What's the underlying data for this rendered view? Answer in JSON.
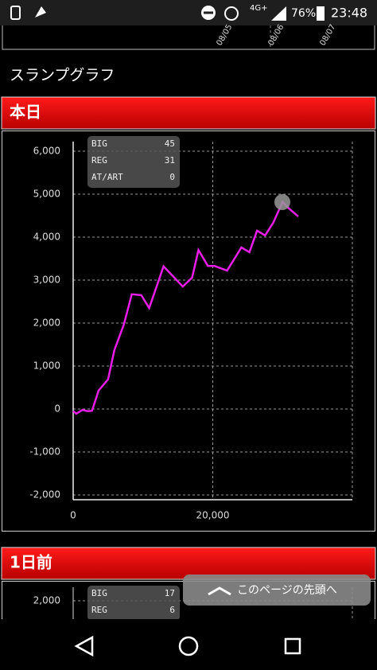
{
  "status_bar": {
    "network": "4G+",
    "battery": "76%",
    "time": "23:48"
  },
  "previous_chart": {
    "x_labels": [
      "08/05",
      "08/06",
      "08/07"
    ]
  },
  "section_title": "スランプグラフ",
  "chart_data": [
    {
      "type": "line",
      "title": "本日",
      "x": [
        0,
        450,
        1350,
        2050,
        2700,
        3650,
        5000,
        5900,
        7250,
        8400,
        9750,
        10900,
        12950,
        15700,
        17050,
        17950,
        19300,
        20250,
        22050,
        24100,
        25250,
        26350,
        27500,
        28650,
        30000,
        30900,
        32250
      ],
      "series": [
        {
          "color": "#e81ee8",
          "values": [
            -50,
            -110,
            -20,
            -50,
            -40,
            430,
            690,
            1370,
            1960,
            2670,
            2650,
            2350,
            3320,
            2850,
            3060,
            3700,
            3330,
            3330,
            3220,
            3760,
            3650,
            4150,
            4040,
            4330,
            4820,
            4670,
            4480
          ]
        }
      ],
      "xlim": [
        0,
        40000
      ],
      "ylim": [
        -2000,
        6000
      ],
      "xticks": [
        0,
        {
          "value": 20000,
          "label": "20,000"
        }
      ],
      "yticks": [
        {
          "value": -2000,
          "label": "-2,000"
        },
        {
          "value": -1000,
          "label": "-1,000"
        },
        0,
        {
          "value": 1000,
          "label": "1,000"
        },
        {
          "value": 2000,
          "label": "2,000"
        },
        {
          "value": 3000,
          "label": "3,000"
        },
        {
          "value": 4000,
          "label": "4,000"
        },
        {
          "value": 5000,
          "label": "5,000"
        },
        {
          "value": 6000,
          "label": "6,000"
        }
      ],
      "grid": true,
      "stats": [
        {
          "label": "BIG",
          "value": 45
        },
        {
          "label": "REG",
          "value": 31
        },
        {
          "label": "AT/ART",
          "value": 0
        }
      ]
    },
    {
      "type": "line",
      "title": "1日前",
      "yticks": [
        {
          "value": 2000,
          "label": "2,000"
        }
      ],
      "stats": [
        {
          "label": "BIG",
          "value": 17
        },
        {
          "label": "REG",
          "value": 6
        }
      ]
    }
  ],
  "scroll_top_button": "このページの先頭へ"
}
